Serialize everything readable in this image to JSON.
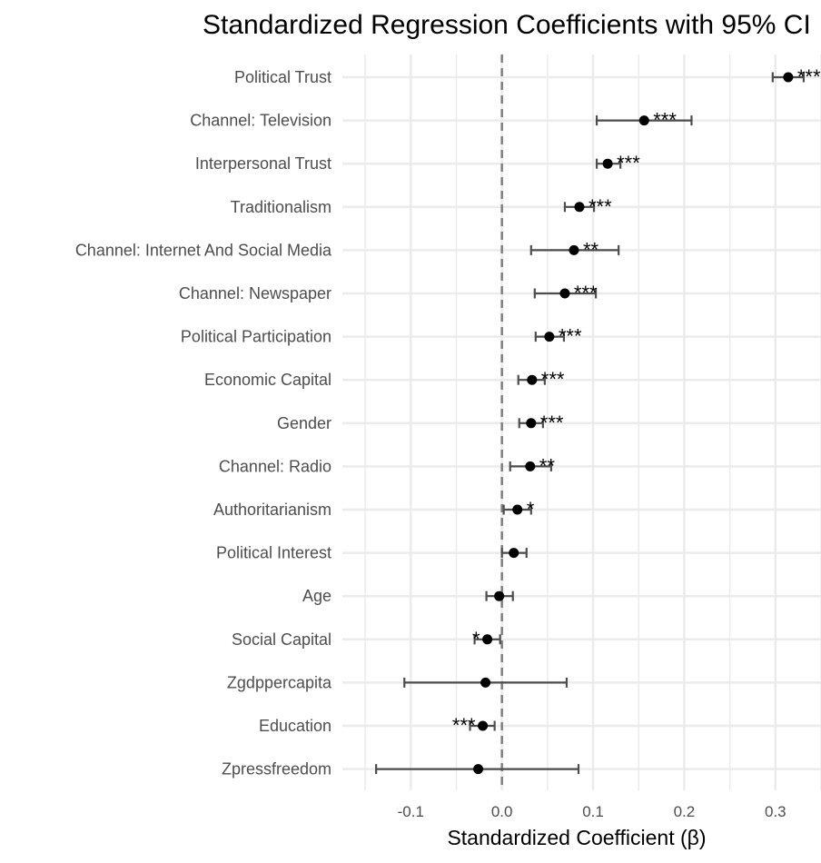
{
  "chart_data": {
    "type": "forest",
    "title": "Standardized Regression Coefficients with 95% CI",
    "xlabel": "Standardized Coefficient (β)",
    "ylabel": "",
    "xlim": [
      -0.175,
      0.35
    ],
    "x_ticks": [
      -0.1,
      0.0,
      0.1,
      0.2,
      0.3
    ],
    "x_tick_labels": [
      "-0.1",
      "0.0",
      "0.1",
      "0.2",
      "0.3"
    ],
    "reference_line": 0,
    "grid": true,
    "categories": [
      "Political Trust",
      "Channel: Television",
      "Interpersonal Trust",
      "Traditionalism",
      "Channel: Internet And Social Media",
      "Channel: Newspaper",
      "Political Participation",
      "Economic Capital",
      "Gender",
      "Channel: Radio",
      "Authoritarianism",
      "Political Interest",
      "Age",
      "Social Capital",
      "Zgdppercapita",
      "Education",
      "Zpressfreedom"
    ],
    "estimates": [
      0.314,
      0.156,
      0.116,
      0.085,
      0.079,
      0.069,
      0.052,
      0.033,
      0.032,
      0.031,
      0.017,
      0.013,
      -0.003,
      -0.016,
      -0.018,
      -0.021,
      -0.026
    ],
    "ci_lower": [
      0.297,
      0.104,
      0.104,
      0.069,
      0.032,
      0.036,
      0.037,
      0.018,
      0.019,
      0.009,
      0.002,
      0.0,
      -0.017,
      -0.03,
      -0.107,
      -0.035,
      -0.138
    ],
    "ci_upper": [
      0.331,
      0.208,
      0.13,
      0.101,
      0.128,
      0.103,
      0.068,
      0.047,
      0.045,
      0.054,
      0.032,
      0.027,
      0.012,
      -0.002,
      0.071,
      -0.008,
      0.084
    ],
    "significance": [
      "***",
      "***",
      "***",
      "***",
      "**",
      "***",
      "***",
      "***",
      "***",
      "**",
      "*",
      "",
      "",
      "*",
      "",
      "***",
      ""
    ],
    "colors": {
      "point": "#000000",
      "errorbar": "#4d4d4d",
      "reference_line": "#7f7f7f",
      "grid": "#ebebeb",
      "text": "#4d4d4d"
    }
  }
}
